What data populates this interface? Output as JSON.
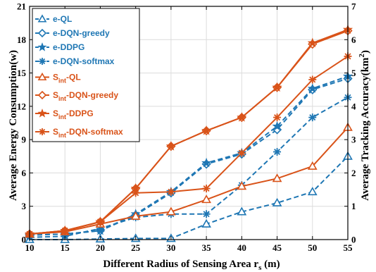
{
  "chart_data": {
    "type": "line",
    "x": [
      10,
      15,
      20,
      25,
      30,
      35,
      40,
      45,
      50,
      55
    ],
    "xlim": [
      10,
      55
    ],
    "ylim_left": [
      0,
      21
    ],
    "ylim_right": [
      0,
      7
    ],
    "xticks": [
      "10",
      "15",
      "20",
      "25",
      "30",
      "35",
      "40",
      "45",
      "50",
      "55"
    ],
    "yticks_left": [
      "0",
      "3",
      "6",
      "9",
      "12",
      "15",
      "18",
      "21"
    ],
    "yticks_right": [
      "0",
      "1",
      "2",
      "3",
      "4",
      "5",
      "6",
      "7"
    ],
    "xlabel_main": "Different Radius of Sensing Area r",
    "xlabel_sub": "s",
    "xlabel_unit": " (m)",
    "ylabel_left": "Average Energy Consumption(w)",
    "ylabel_right_main": "Average Tracking Accuracy(km",
    "ylabel_right_sup": "2",
    "ylabel_right_end": ")",
    "grid": true,
    "legend_position": "top-left",
    "colors": {
      "blue": "#1f77b4",
      "orange": "#d95319"
    },
    "series": [
      {
        "name_main": "e-QL",
        "name_sub": "",
        "name_rest": "",
        "color": "blue",
        "marker": "triangle",
        "dashed": true,
        "axis": "left",
        "values": [
          0.0,
          0.0,
          0.05,
          0.1,
          0.1,
          1.4,
          2.5,
          3.3,
          4.3,
          7.5
        ]
      },
      {
        "name_main": "e-DQN-greedy",
        "name_sub": "",
        "name_rest": "",
        "color": "blue",
        "marker": "diamond",
        "dashed": true,
        "axis": "left",
        "values": [
          0.4,
          0.5,
          0.8,
          2.2,
          4.2,
          6.8,
          7.7,
          9.9,
          13.5,
          14.5
        ]
      },
      {
        "name_main": "e-DDPG",
        "name_sub": "",
        "name_rest": "",
        "color": "blue",
        "marker": "star",
        "dashed": true,
        "axis": "left",
        "values": [
          0.4,
          0.5,
          0.8,
          2.3,
          4.3,
          6.9,
          7.8,
          10.2,
          13.6,
          14.7
        ]
      },
      {
        "name_main": "e-DQN-softmax",
        "name_sub": "",
        "name_rest": "",
        "color": "blue",
        "marker": "asterisk",
        "dashed": true,
        "axis": "left",
        "values": [
          0.2,
          0.3,
          1.0,
          2.0,
          2.3,
          2.3,
          4.9,
          7.9,
          11.0,
          12.8
        ]
      },
      {
        "name_main": "S",
        "name_sub": "int",
        "name_rest": "-QL",
        "color": "orange",
        "marker": "triangle",
        "dashed": false,
        "axis": "left",
        "values": [
          0.5,
          0.7,
          1.4,
          2.1,
          2.5,
          3.6,
          4.8,
          5.5,
          6.6,
          10.1
        ]
      },
      {
        "name_main": "S",
        "name_sub": "int",
        "name_rest": "-DQN-greedy",
        "color": "orange",
        "marker": "diamond",
        "dashed": false,
        "axis": "left",
        "values": [
          0.5,
          0.8,
          1.6,
          4.6,
          8.4,
          9.8,
          11.0,
          13.7,
          17.6,
          18.8
        ]
      },
      {
        "name_main": "S",
        "name_sub": "int",
        "name_rest": "-DDPG",
        "color": "orange",
        "marker": "star",
        "dashed": false,
        "axis": "left",
        "values": [
          0.5,
          0.8,
          1.6,
          4.6,
          8.4,
          9.8,
          11.0,
          13.7,
          17.7,
          18.9
        ]
      },
      {
        "name_main": "S",
        "name_sub": "int",
        "name_rest": "-DQN-softmax",
        "color": "orange",
        "marker": "asterisk",
        "dashed": false,
        "axis": "left",
        "values": [
          0.5,
          0.8,
          1.6,
          4.2,
          4.3,
          4.6,
          7.8,
          11.0,
          14.4,
          16.5
        ]
      }
    ]
  }
}
